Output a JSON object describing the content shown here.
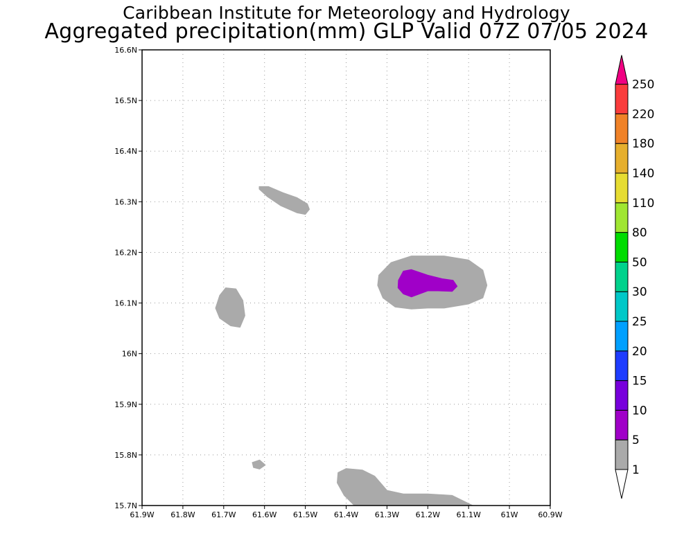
{
  "title": "Caribbean Institute for Meteorology and Hydrology",
  "subtitle": "Aggregated precipitation(mm) GLP Valid 07Z 07/05 2024",
  "map": {
    "lon_range": [
      -61.9,
      -60.9
    ],
    "lat_range": [
      15.7,
      16.6
    ],
    "x_ticks": [
      {
        "value": -61.9,
        "label": "61.9W"
      },
      {
        "value": -61.8,
        "label": "61.8W"
      },
      {
        "value": -61.7,
        "label": "61.7W"
      },
      {
        "value": -61.6,
        "label": "61.6W"
      },
      {
        "value": -61.5,
        "label": "61.5W"
      },
      {
        "value": -61.4,
        "label": "61.4W"
      },
      {
        "value": -61.3,
        "label": "61.3W"
      },
      {
        "value": -61.2,
        "label": "61.2W"
      },
      {
        "value": -61.1,
        "label": "61.1W"
      },
      {
        "value": -61.0,
        "label": "61W"
      },
      {
        "value": -60.9,
        "label": "60.9W"
      }
    ],
    "y_ticks": [
      {
        "value": 15.7,
        "label": "15.7N"
      },
      {
        "value": 15.8,
        "label": "15.8N"
      },
      {
        "value": 15.9,
        "label": "15.9N"
      },
      {
        "value": 16.0,
        "label": "16N"
      },
      {
        "value": 16.1,
        "label": "16.1N"
      },
      {
        "value": 16.2,
        "label": "16.2N"
      },
      {
        "value": 16.3,
        "label": "16.3N"
      },
      {
        "value": 16.4,
        "label": "16.4N"
      },
      {
        "value": 16.5,
        "label": "16.5N"
      },
      {
        "value": 16.6,
        "label": "16.6N"
      }
    ],
    "grid": "dotted",
    "regions": [
      {
        "category": "1-5",
        "color": "#aaaaaa",
        "points": [
          [
            -61.613,
            16.33
          ],
          [
            -61.59,
            16.33
          ],
          [
            -61.555,
            16.318
          ],
          [
            -61.52,
            16.308
          ],
          [
            -61.495,
            16.296
          ],
          [
            -61.49,
            16.285
          ],
          [
            -61.5,
            16.275
          ],
          [
            -61.52,
            16.278
          ],
          [
            -61.56,
            16.292
          ],
          [
            -61.593,
            16.31
          ],
          [
            -61.613,
            16.325
          ]
        ]
      },
      {
        "category": "1-5",
        "color": "#aaaaaa",
        "points": [
          [
            -61.71,
            16.115
          ],
          [
            -61.695,
            16.13
          ],
          [
            -61.67,
            16.128
          ],
          [
            -61.653,
            16.105
          ],
          [
            -61.648,
            16.075
          ],
          [
            -61.66,
            16.052
          ],
          [
            -61.683,
            16.055
          ],
          [
            -61.71,
            16.07
          ],
          [
            -61.72,
            16.09
          ]
        ]
      },
      {
        "category": "1-5",
        "color": "#aaaaaa",
        "points": [
          [
            -61.32,
            16.155
          ],
          [
            -61.29,
            16.18
          ],
          [
            -61.24,
            16.193
          ],
          [
            -61.16,
            16.193
          ],
          [
            -61.1,
            16.185
          ],
          [
            -61.065,
            16.165
          ],
          [
            -61.055,
            16.135
          ],
          [
            -61.065,
            16.11
          ],
          [
            -61.1,
            16.098
          ],
          [
            -61.16,
            16.09
          ],
          [
            -61.2,
            16.09
          ],
          [
            -61.24,
            16.088
          ],
          [
            -61.28,
            16.092
          ],
          [
            -61.31,
            16.11
          ],
          [
            -61.323,
            16.135
          ]
        ]
      },
      {
        "category": "1-5",
        "color": "#aaaaaa",
        "points": [
          [
            -61.63,
            15.785
          ],
          [
            -61.612,
            15.79
          ],
          [
            -61.598,
            15.78
          ],
          [
            -61.612,
            15.772
          ],
          [
            -61.627,
            15.775
          ]
        ]
      },
      {
        "category": "1-5",
        "color": "#aaaaaa",
        "points": [
          [
            -61.42,
            15.765
          ],
          [
            -61.4,
            15.773
          ],
          [
            -61.36,
            15.77
          ],
          [
            -61.33,
            15.758
          ],
          [
            -61.3,
            15.73
          ],
          [
            -61.26,
            15.723
          ],
          [
            -61.2,
            15.723
          ],
          [
            -61.14,
            15.72
          ],
          [
            -61.09,
            15.7
          ],
          [
            -61.38,
            15.7
          ],
          [
            -61.405,
            15.72
          ],
          [
            -61.422,
            15.745
          ]
        ]
      },
      {
        "category": "5-10",
        "color": "#a000c8",
        "points": [
          [
            -61.272,
            16.145
          ],
          [
            -61.26,
            16.163
          ],
          [
            -61.24,
            16.166
          ],
          [
            -61.2,
            16.155
          ],
          [
            -61.165,
            16.148
          ],
          [
            -61.138,
            16.145
          ],
          [
            -61.128,
            16.133
          ],
          [
            -61.14,
            16.123
          ],
          [
            -61.175,
            16.124
          ],
          [
            -61.2,
            16.124
          ],
          [
            -61.24,
            16.112
          ],
          [
            -61.26,
            16.118
          ],
          [
            -61.273,
            16.13
          ]
        ]
      }
    ]
  },
  "colorbar": {
    "levels": [
      {
        "color": "#aaaaaa",
        "label": "1"
      },
      {
        "color": "#a000c8",
        "label": "5"
      },
      {
        "color": "#7800dc",
        "label": "10"
      },
      {
        "color": "#1e3cff",
        "label": "15"
      },
      {
        "color": "#00a0ff",
        "label": "20"
      },
      {
        "color": "#00c8c8",
        "label": "25"
      },
      {
        "color": "#00d28c",
        "label": "30"
      },
      {
        "color": "#00dc00",
        "label": "50"
      },
      {
        "color": "#a0e632",
        "label": "80"
      },
      {
        "color": "#e6dc32",
        "label": "110"
      },
      {
        "color": "#e6af2d",
        "label": "140"
      },
      {
        "color": "#f08228",
        "label": "180"
      },
      {
        "color": "#fa3c3c",
        "label": "220"
      },
      {
        "color": "#f00082",
        "label": "250"
      }
    ]
  }
}
